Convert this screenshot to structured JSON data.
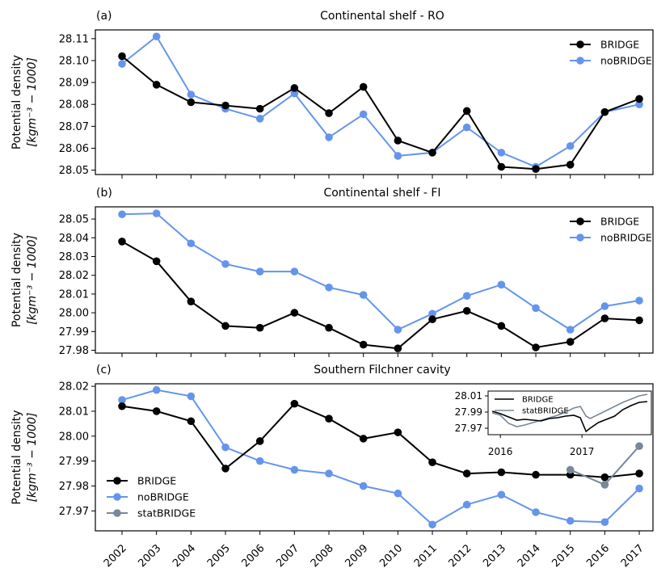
{
  "colors": {
    "BRIDGE": "#000000",
    "noBRIDGE": "#6495ED",
    "statBRIDGE": "#778899"
  },
  "x_tick_labels": [
    "2002",
    "2003",
    "2004",
    "2005",
    "2006",
    "2007",
    "2008",
    "2009",
    "2010",
    "2011",
    "2012",
    "2013",
    "2014",
    "2015",
    "2016",
    "2017"
  ],
  "chart_data": [
    {
      "type": "line",
      "panel_label": "(a)",
      "title": "Continental shelf - RO",
      "ylabel_line1": "Potential density",
      "ylabel_line2": "[kgm⁻³ − 1000]",
      "ylim": [
        28.048,
        28.114
      ],
      "yticks": [
        28.05,
        28.06,
        28.07,
        28.08,
        28.09,
        28.1,
        28.11
      ],
      "ytick_labels": [
        "28.05",
        "28.06",
        "28.07",
        "28.08",
        "28.09",
        "28.10",
        "28.11"
      ],
      "legend_position": "top-right",
      "x": [
        2002,
        2003,
        2004,
        2005,
        2006,
        2007,
        2008,
        2009,
        2010,
        2011,
        2012,
        2013,
        2014,
        2015,
        2016,
        2017
      ],
      "series": [
        {
          "name": "BRIDGE",
          "values": [
            28.102,
            28.089,
            28.081,
            28.0795,
            28.078,
            28.0875,
            28.076,
            28.088,
            28.0635,
            28.058,
            28.077,
            28.0515,
            28.0505,
            28.0525,
            28.0765,
            28.0825
          ]
        },
        {
          "name": "noBRIDGE",
          "values": [
            28.0985,
            28.111,
            28.0845,
            28.078,
            28.0735,
            28.085,
            28.065,
            28.0755,
            28.0565,
            28.058,
            28.0695,
            28.058,
            28.0515,
            28.061,
            28.0765,
            28.08
          ]
        }
      ]
    },
    {
      "type": "line",
      "panel_label": "(b)",
      "title": "Continental shelf - FI",
      "ylabel_line1": "Potential density",
      "ylabel_line2": "[kgm⁻³ − 1000]",
      "ylim": [
        27.9785,
        28.0565
      ],
      "yticks": [
        27.98,
        27.99,
        28.0,
        28.01,
        28.02,
        28.03,
        28.04,
        28.05
      ],
      "ytick_labels": [
        "27.98",
        "27.99",
        "28.00",
        "28.01",
        "28.02",
        "28.03",
        "28.04",
        "28.05"
      ],
      "legend_position": "top-right",
      "x": [
        2002,
        2003,
        2004,
        2005,
        2006,
        2007,
        2008,
        2009,
        2010,
        2011,
        2012,
        2013,
        2014,
        2015,
        2016,
        2017
      ],
      "series": [
        {
          "name": "BRIDGE",
          "values": [
            28.038,
            28.0275,
            28.006,
            27.993,
            27.992,
            28.0,
            27.992,
            27.983,
            27.981,
            27.9965,
            28.001,
            27.993,
            27.9815,
            27.9845,
            27.997,
            27.996
          ]
        },
        {
          "name": "noBRIDGE",
          "values": [
            28.0525,
            28.053,
            28.037,
            28.026,
            28.022,
            28.022,
            28.0135,
            28.0095,
            27.991,
            27.9995,
            28.009,
            28.015,
            28.0025,
            27.991,
            28.0035,
            28.0065
          ]
        }
      ]
    },
    {
      "type": "line",
      "panel_label": "(c)",
      "title": "Southern Filchner cavity",
      "ylabel_line1": "Potential density",
      "ylabel_line2": "[kgm⁻³ − 1000]",
      "ylim": [
        27.962,
        28.021
      ],
      "yticks": [
        27.97,
        27.98,
        27.99,
        28.0,
        28.01,
        28.02
      ],
      "ytick_labels": [
        "27.97",
        "27.98",
        "27.99",
        "28.00",
        "28.01",
        "28.02"
      ],
      "legend_position": "bottom-left",
      "x": [
        2002,
        2003,
        2004,
        2005,
        2006,
        2007,
        2008,
        2009,
        2010,
        2011,
        2012,
        2013,
        2014,
        2015,
        2016,
        2017
      ],
      "series": [
        {
          "name": "BRIDGE",
          "values": [
            28.012,
            28.01,
            28.006,
            27.987,
            27.998,
            28.013,
            28.007,
            27.999,
            28.0015,
            27.9895,
            27.985,
            27.9855,
            27.9845,
            27.9845,
            27.9835,
            27.985
          ]
        },
        {
          "name": "noBRIDGE",
          "values": [
            28.0145,
            28.0185,
            28.016,
            27.9955,
            27.99,
            27.9865,
            27.985,
            27.98,
            27.977,
            27.9645,
            27.9725,
            27.9765,
            27.9695,
            27.966,
            27.9655,
            27.979
          ]
        },
        {
          "name": "statBRIDGE",
          "x": [
            2015,
            2016,
            2017
          ],
          "values": [
            27.9865,
            27.9805,
            27.996
          ]
        }
      ],
      "inset": {
        "type": "line",
        "ylim": [
          27.962,
          28.016
        ],
        "yticks": [
          27.97,
          27.99,
          28.01
        ],
        "ytick_labels": [
          "27.97",
          "27.99",
          "28.01"
        ],
        "xlim": [
          2015.85,
          2017.85
        ],
        "xticks": [
          2016,
          2017
        ],
        "xtick_labels": [
          "2016",
          "2017"
        ],
        "legend_position": "top-left",
        "series": [
          {
            "name": "BRIDGE",
            "x": [
              2015.9,
              2016.0,
              2016.1,
              2016.2,
              2016.3,
              2016.4,
              2016.5,
              2016.6,
              2016.7,
              2016.8,
              2016.9,
              2016.98,
              2017.05,
              2017.1,
              2017.2,
              2017.3,
              2017.4,
              2017.5,
              2017.6,
              2017.7,
              2017.8
            ],
            "values": [
              27.991,
              27.988,
              27.984,
              27.98,
              27.981,
              27.98,
              27.979,
              27.982,
              27.983,
              27.985,
              27.986,
              27.983,
              27.966,
              27.97,
              27.977,
              27.981,
              27.985,
              27.993,
              27.998,
              28.002,
              28.003
            ]
          },
          {
            "name": "statBRIDGE",
            "x": [
              2015.9,
              2016.0,
              2016.1,
              2016.2,
              2016.3,
              2016.4,
              2016.5,
              2016.6,
              2016.7,
              2016.8,
              2016.9,
              2016.98,
              2017.05,
              2017.1,
              2017.2,
              2017.3,
              2017.4,
              2017.5,
              2017.6,
              2017.7,
              2017.8
            ],
            "values": [
              27.989,
              27.986,
              27.976,
              27.972,
              27.974,
              27.977,
              27.98,
              27.983,
              27.986,
              27.99,
              27.995,
              27.997,
              27.985,
              27.982,
              27.987,
              27.992,
              27.997,
              28.002,
              28.006,
              28.01,
              28.012
            ]
          }
        ]
      }
    }
  ]
}
